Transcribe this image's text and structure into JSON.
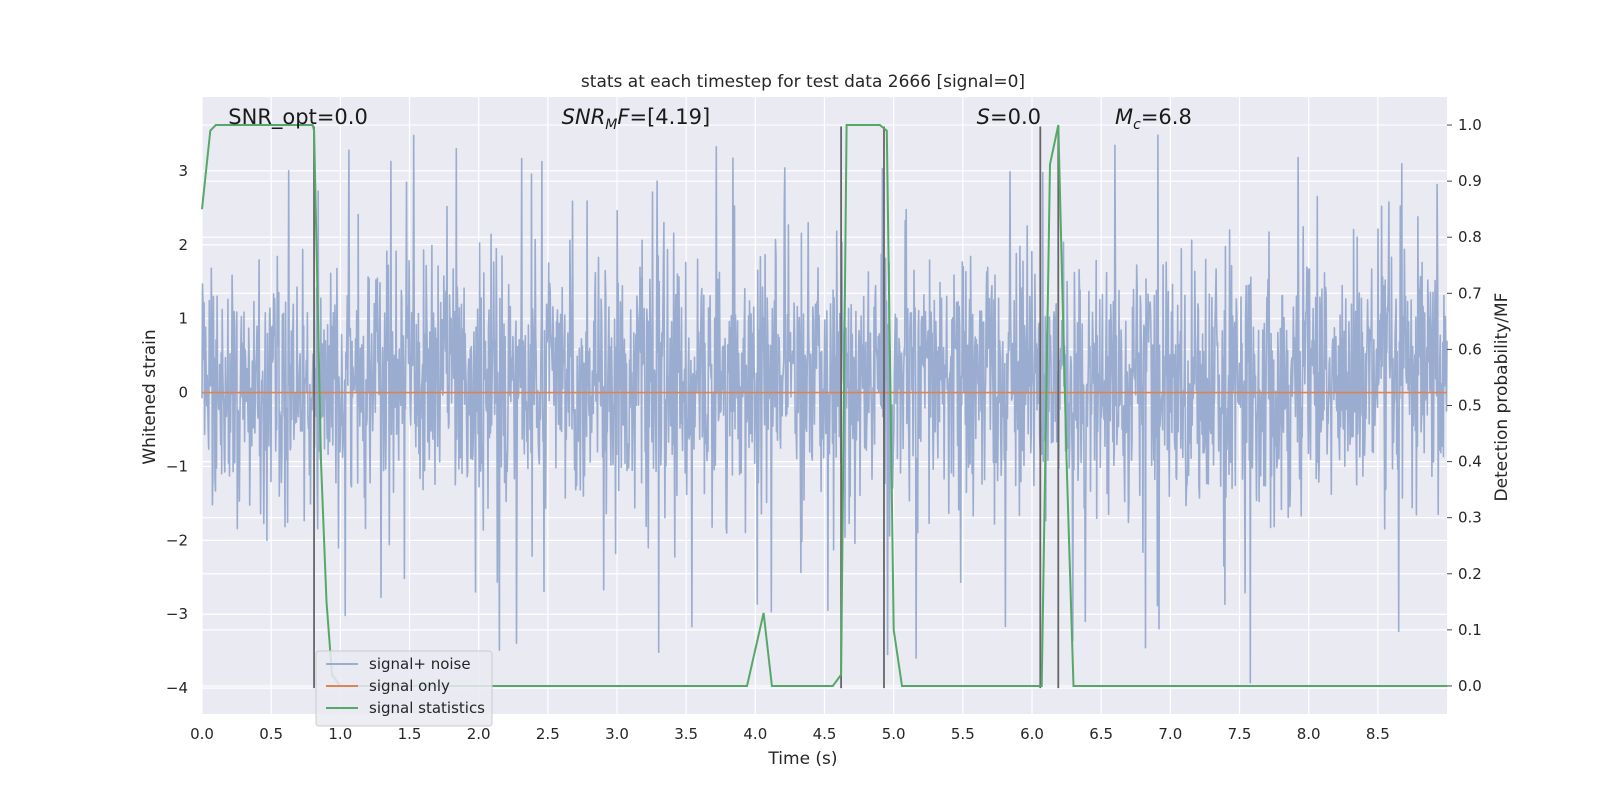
{
  "chart_data": {
    "type": "line",
    "title": "stats at each timestep for test data 2666 [signal=0]",
    "xlabel": "Time (s)",
    "ylabel": "Whitened strain",
    "ylabel_right": "Detection probability/MF",
    "xlim": [
      0.0,
      9.0
    ],
    "ylim": [
      -4.35,
      4.0
    ],
    "ylim_right": [
      -0.05,
      1.05
    ],
    "grid": true,
    "legend_position": "lower-left",
    "x_ticks": [
      "0.0",
      "0.5",
      "1.0",
      "1.5",
      "2.0",
      "2.5",
      "3.0",
      "3.5",
      "4.0",
      "4.5",
      "5.0",
      "5.5",
      "6.0",
      "6.5",
      "7.0",
      "7.5",
      "8.0",
      "8.5"
    ],
    "y_ticks": [
      "3",
      "2",
      "1",
      "0",
      "−1",
      "−2",
      "−3",
      "−4"
    ],
    "y_ticks_right": [
      "1.0",
      "0.9",
      "0.8",
      "0.7",
      "0.6",
      "0.5",
      "0.4",
      "0.3",
      "0.2",
      "0.1",
      "0.0"
    ],
    "annotations": [
      {
        "id": "snr_opt",
        "text": "SNR_opt=0.0",
        "x": 0.19
      },
      {
        "id": "snr_mf",
        "text_main": "SNR",
        "text_sub": "M",
        "text_tail": "F=[4.19]",
        "x": 2.6
      },
      {
        "id": "s",
        "text_main": "S",
        "text_tail": "=0.0",
        "x": 5.6
      },
      {
        "id": "mc",
        "text_main": "M",
        "text_sub": "c",
        "text_tail": "=6.8",
        "x": 6.6
      }
    ],
    "series": [
      {
        "name": "signal+ noise",
        "color": "#9aaccf",
        "axis": "left",
        "description_values": "dense whitened noise, amplitude mostly within [-2.2, 2.6] with spikes to about 3.6 and -4.0",
        "envelope": {
          "upper_typical": 1.9,
          "lower_typical": -1.5,
          "max": 3.6,
          "min": -4.05
        }
      },
      {
        "name": "signal only",
        "color": "#dd8452",
        "axis": "left",
        "x": [
          0.0,
          9.0
        ],
        "y": [
          0.0,
          0.0
        ]
      },
      {
        "name": "signal statistics",
        "color": "#55a868",
        "axis": "right",
        "x": [
          0.0,
          0.06,
          0.1,
          0.2,
          0.3,
          0.4,
          0.5,
          0.6,
          0.7,
          0.8,
          0.81,
          0.86,
          0.9,
          0.94,
          1.0,
          2.0,
          3.0,
          3.94,
          4.06,
          4.12,
          4.3,
          4.5,
          4.56,
          4.62,
          4.66,
          4.72,
          4.8,
          4.9,
          4.95,
          5.0,
          5.06,
          5.5,
          6.0,
          6.07,
          6.13,
          6.19,
          6.25,
          6.3,
          6.4,
          7.0,
          8.0,
          9.0
        ],
        "y": [
          0.85,
          0.99,
          1.0,
          1.0,
          1.0,
          1.0,
          1.0,
          1.0,
          1.0,
          1.0,
          0.99,
          0.4,
          0.15,
          0.02,
          0.0,
          0.0,
          0.0,
          0.0,
          0.13,
          0.0,
          0.0,
          0.0,
          0.0,
          0.02,
          1.0,
          1.0,
          1.0,
          1.0,
          0.99,
          0.1,
          0.0,
          0.0,
          0.0,
          0.0,
          0.93,
          1.0,
          0.4,
          0.0,
          0.0,
          0.0,
          0.0,
          0.0
        ]
      }
    ],
    "vlines": [
      {
        "x": 0.81,
        "from": -4.0,
        "to": 3.6
      },
      {
        "x": 4.62,
        "from": -4.0,
        "to": 3.6
      },
      {
        "x": 4.93,
        "from": -4.0,
        "to": 3.6
      },
      {
        "x": 6.06,
        "from": -4.0,
        "to": 3.6
      },
      {
        "x": 6.19,
        "from": -4.0,
        "to": 3.6
      }
    ],
    "colors": {
      "plot_bg": "#eaeaf2",
      "grid": "#ffffff",
      "vline": "#666666"
    }
  }
}
